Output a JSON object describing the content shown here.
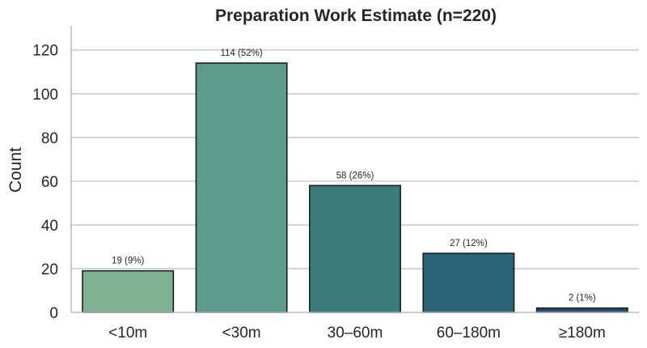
{
  "chart_data": {
    "type": "bar",
    "title": "Preparation Work Estimate (n=220)",
    "xlabel": "",
    "ylabel": "Count",
    "ylim": [
      0,
      131
    ],
    "yticks": [
      0,
      20,
      40,
      60,
      80,
      100,
      120
    ],
    "categories": [
      "<10m",
      "<30m",
      "30–60m",
      "60–180m",
      "≥180m"
    ],
    "values": [
      19,
      114,
      58,
      27,
      2
    ],
    "data_labels": [
      "19 (9%)",
      "114 (52%)",
      "58 (26%)",
      "27 (12%)",
      "2 (1%)"
    ],
    "colors": [
      "#7fb290",
      "#5c9a8c",
      "#3b7c7d",
      "#2b6479",
      "#1f4c6f"
    ],
    "grid": true,
    "legend": "none"
  }
}
